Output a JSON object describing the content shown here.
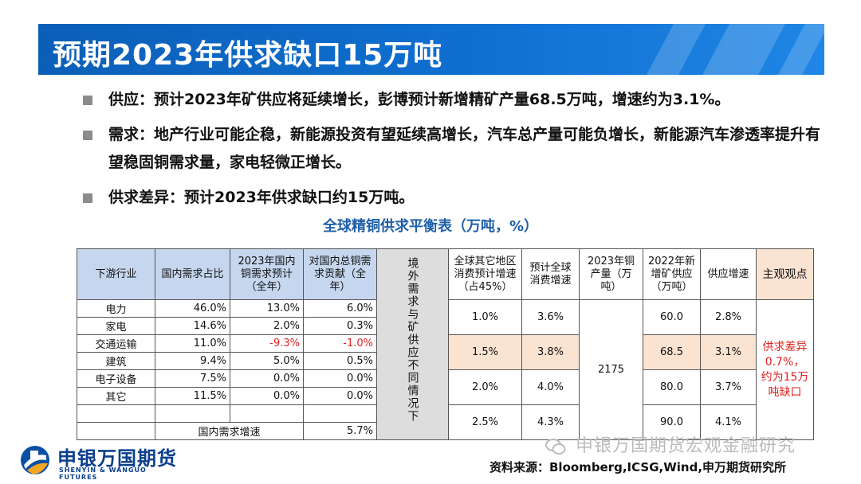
{
  "title": "预期2023年供求缺口15万吨",
  "bullets": [
    "供应：预计2023年矿供应将延续增长，彭博预计新增精矿产量68.5万吨，增速约为3.1%。",
    "需求：地产行业可能企稳，新能源投资有望延续高增长，汽车总产量可能负增长，新能源汽车渗透率提升有望稳固铜需求量，家电轻微正增长。",
    "供求差异：预计2023年供求缺口约15万吨。"
  ],
  "table": {
    "title": "全球精铜供求平衡表（万吨，%）",
    "headers": {
      "industry": "下游行业",
      "share": "国内需求占比",
      "dom_growth": "2023年国内铜需求预计（全年）",
      "contrib": "对国内总铜需求贡献（全年）",
      "overseas": "境外需求与矿供应不同情况下",
      "other_growth": "全球其它地区消费预计增速（占45%）",
      "global_growth": "预计全球消费增速",
      "output": "2023年铜产量（万吨）",
      "new_supply": "2022年新增矿供应（万吨）",
      "supply_growth": "供应增速",
      "view": "主观观点"
    },
    "left_rows": [
      {
        "industry": "电力",
        "share": "46.0%",
        "growth": "13.0%",
        "contrib": "6.0%"
      },
      {
        "industry": "家电",
        "share": "14.6%",
        "growth": "2.0%",
        "contrib": "0.3%"
      },
      {
        "industry": "交通运输",
        "share": "11.0%",
        "growth": "-9.3%",
        "contrib": "-1.0%"
      },
      {
        "industry": "建筑",
        "share": "9.4%",
        "growth": "5.0%",
        "contrib": "0.5%"
      },
      {
        "industry": "电子设备",
        "share": "7.5%",
        "growth": "0.0%",
        "contrib": "0.0%"
      },
      {
        "industry": "其它",
        "share": "11.5%",
        "growth": "0.0%",
        "contrib": "0.0%"
      }
    ],
    "total_label": "国内需求增速",
    "total_value": "5.7%",
    "scenarios": [
      {
        "other": "1.0%",
        "global": "3.6%",
        "new_supply": "60.0",
        "supply_growth": "2.8%"
      },
      {
        "other": "1.5%",
        "global": "3.8%",
        "new_supply": "68.5",
        "supply_growth": "3.1%"
      },
      {
        "other": "2.0%",
        "global": "4.0%",
        "new_supply": "80.0",
        "supply_growth": "3.7%"
      },
      {
        "other": "2.5%",
        "global": "4.3%",
        "new_supply": "90.0",
        "supply_growth": "4.1%"
      }
    ],
    "output_value": "2175",
    "opinion": "供求差异0.7%，约为15万吨缺口"
  },
  "logo": {
    "name": "申银万国期货",
    "english": "SHENYIN & WANGUO FUTURES"
  },
  "watermark": "申银万国期货宏观金融研究",
  "source": "资料来源：Bloomberg,ICSG,Wind,申万期货研究所",
  "colors": {
    "banner": "#0c5fb8",
    "header_fill": "#c5d6ee",
    "highlight": "#fbe3d2",
    "negative": "#e02020",
    "table_title": "#1f5fa8"
  }
}
